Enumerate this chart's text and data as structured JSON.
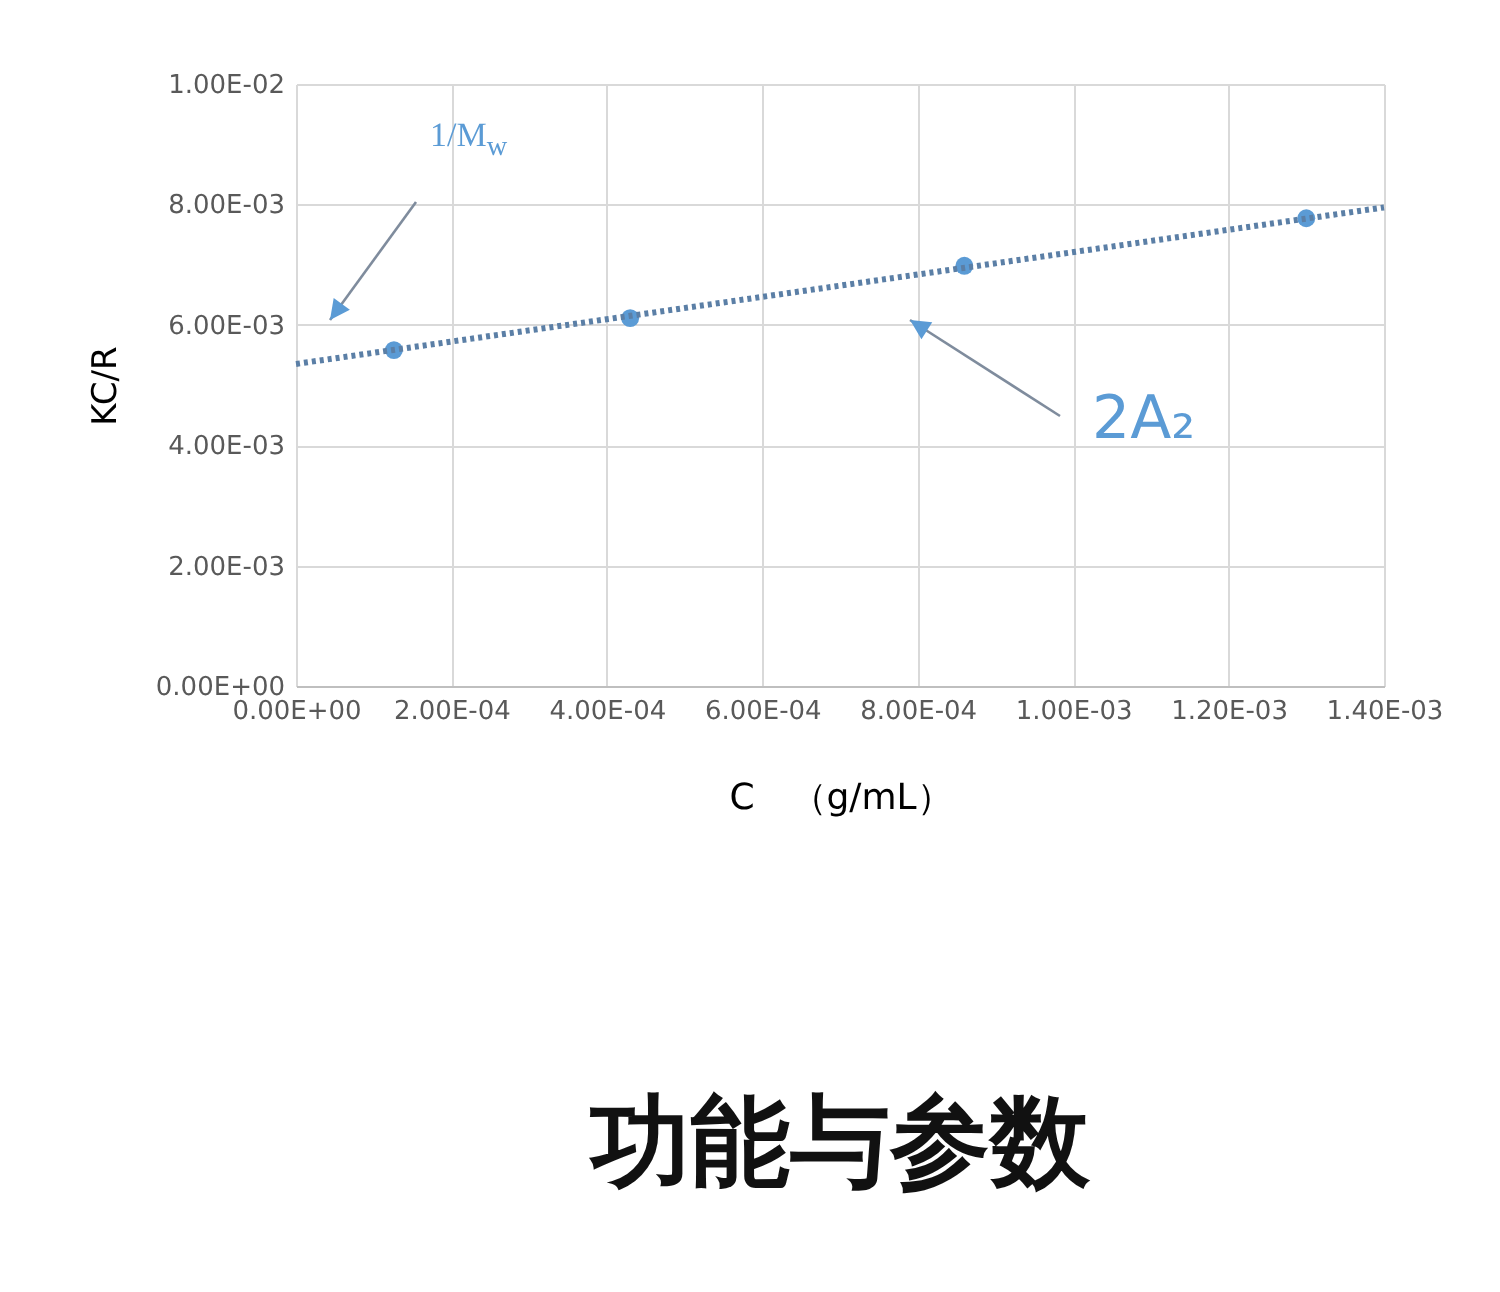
{
  "chart_data": {
    "type": "scatter",
    "title": "功能与参数",
    "xlabel": "C　（g/mL）",
    "ylabel": "KC/R",
    "x": [
      0.000126,
      0.00043,
      0.00086,
      0.0013
    ],
    "series": [
      {
        "color": "#5b9bd5",
        "values": [
          0.00558,
          0.00611,
          0.00698,
          0.00777
        ],
        "marker": "circle"
      },
      {
        "type": "line",
        "x": [
          0,
          0.0014
        ],
        "values": [
          0.00535,
          0.00795
        ],
        "color": "#5b7fa6",
        "line_style": "dotted"
      }
    ],
    "xlim": [
      0,
      0.0014
    ],
    "ylim": [
      0,
      0.01
    ],
    "xticks": [
      {
        "value": 0,
        "label": "0.00E+00"
      },
      {
        "value": 0.0002,
        "label": "2.00E-04"
      },
      {
        "value": 0.0004,
        "label": "4.00E-04"
      },
      {
        "value": 0.0006,
        "label": "6.00E-04"
      },
      {
        "value": 0.0008,
        "label": "8.00E-04"
      },
      {
        "value": 0.001,
        "label": "1.00E-03"
      },
      {
        "value": 0.0012,
        "label": "1.20E-03"
      },
      {
        "value": 0.0014,
        "label": "1.40E-03"
      }
    ],
    "yticks": [
      {
        "value": 0,
        "label": "0.00E+00"
      },
      {
        "value": 0.002,
        "label": "2.00E-03"
      },
      {
        "value": 0.004,
        "label": "4.00E-03"
      },
      {
        "value": 0.006,
        "label": "6.00E-03"
      },
      {
        "value": 0.008,
        "label": "8.00E-03"
      },
      {
        "value": 0.01,
        "label": "1.00E-02"
      }
    ],
    "annotations": [
      "1/M$_{w}$",
      "2A₂"
    ],
    "grid": true
  }
}
